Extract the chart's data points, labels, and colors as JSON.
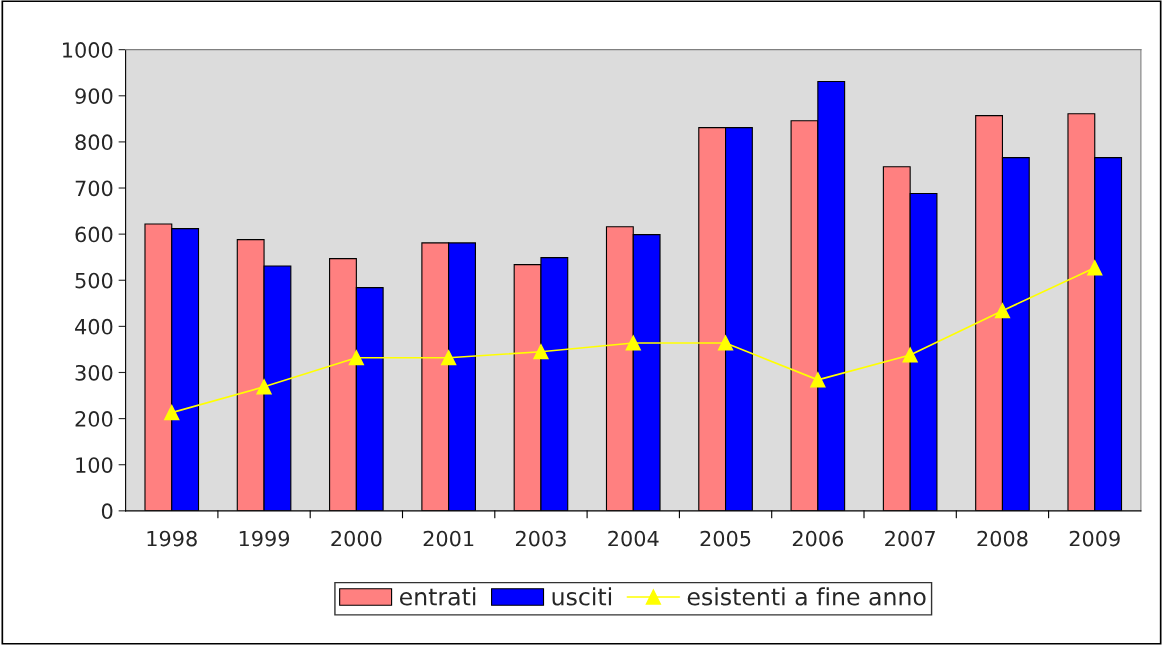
{
  "chart_data": {
    "type": "bar",
    "categories": [
      "1998",
      "1999",
      "2000",
      "2001",
      "2003",
      "2004",
      "2005",
      "2006",
      "2007",
      "2008",
      "2009"
    ],
    "series": [
      {
        "name": "entrati",
        "color": "#ff8080",
        "values": [
          622,
          588,
          547,
          581,
          534,
          616,
          831,
          846,
          746,
          857,
          861
        ]
      },
      {
        "name": "usciti",
        "color": "#0000ff",
        "values": [
          612,
          531,
          484,
          581,
          549,
          599,
          831,
          931,
          688,
          766,
          766
        ]
      },
      {
        "name": "esistenti a fine anno",
        "type": "line",
        "color": "#ffff00",
        "marker": "triangle",
        "values": [
          213,
          269,
          332,
          332,
          345,
          364,
          364,
          284,
          338,
          434,
          527
        ]
      }
    ],
    "ylim": [
      0,
      1000
    ],
    "yticks": [
      0,
      100,
      200,
      300,
      400,
      500,
      600,
      700,
      800,
      900,
      1000
    ],
    "grid": false,
    "legend": "bottom"
  }
}
